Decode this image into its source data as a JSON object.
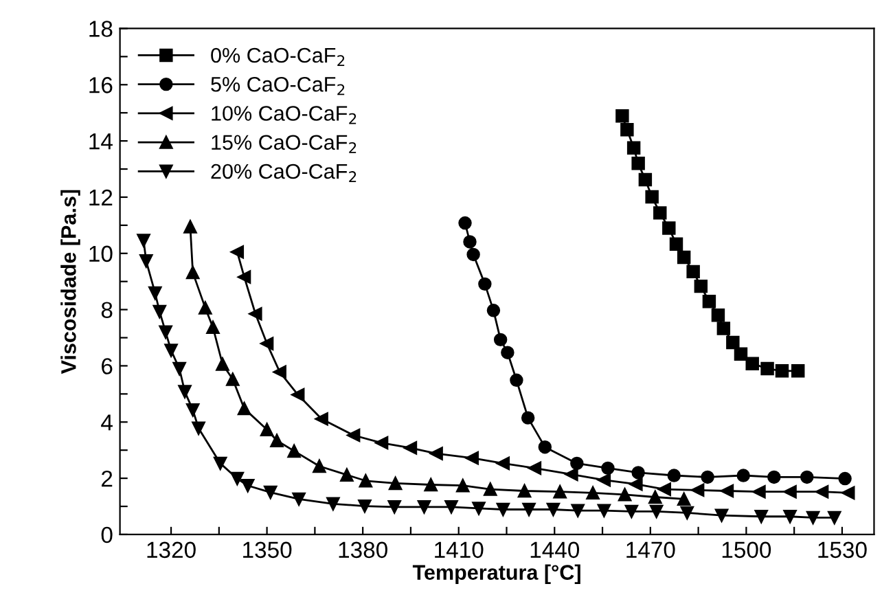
{
  "chart_data": {
    "type": "line",
    "xlabel": "Temperatura [°C]",
    "ylabel": "Viscosidade [Pa.s]",
    "xlim": [
      1304,
      1540
    ],
    "ylim": [
      0,
      18
    ],
    "xticks": [
      1320,
      {
        "value": 1335,
        "label": null
      },
      1350,
      {
        "value": 1365,
        "label": null
      },
      1380,
      {
        "value": 1395,
        "label": null
      },
      1410,
      {
        "value": 1425,
        "label": null
      },
      1440,
      {
        "value": 1455,
        "label": null
      },
      1470,
      {
        "value": 1485,
        "label": null
      },
      1500,
      {
        "value": 1515,
        "label": null
      },
      1530
    ],
    "yticks": [
      0,
      {
        "value": 1,
        "label": null
      },
      2,
      {
        "value": 3,
        "label": null
      },
      4,
      {
        "value": 5,
        "label": null
      },
      6,
      {
        "value": 7,
        "label": null
      },
      8,
      {
        "value": 9,
        "label": null
      },
      10,
      {
        "value": 11,
        "label": null
      },
      12,
      {
        "value": 13,
        "label": null
      },
      14,
      {
        "value": 15,
        "label": null
      },
      16,
      {
        "value": 17,
        "label": null
      },
      18
    ],
    "grid": false,
    "legend": "top left",
    "line_style": "solid",
    "series": [
      {
        "name": "0% CaO-CaF$_{2}$",
        "color": "#000000",
        "marker": "square",
        "x": [
          1461.2,
          1462.7,
          1464.8,
          1466.2,
          1468.4,
          1470.5,
          1473.0,
          1475.8,
          1478.1,
          1480.5,
          1483.4,
          1485.8,
          1488.4,
          1491.2,
          1492.9,
          1495.8,
          1498.3,
          1501.9,
          1506.6,
          1511.2,
          1516.2
        ],
        "values": [
          14.89,
          14.4,
          13.75,
          13.2,
          12.62,
          12.01,
          11.44,
          10.9,
          10.33,
          9.86,
          9.35,
          8.83,
          8.29,
          7.8,
          7.33,
          6.83,
          6.42,
          6.08,
          5.9,
          5.82,
          5.82
        ]
      },
      {
        "name": "5% CaO-CaF$_{2}$",
        "color": "#000000",
        "marker": "circle",
        "x": [
          1412.0,
          1413.5,
          1414.6,
          1418.2,
          1420.9,
          1423.1,
          1425.3,
          1428.1,
          1431.7,
          1437.0,
          1447.0,
          1456.7,
          1466.2,
          1477.4,
          1487.9,
          1499.1,
          1508.7,
          1519.0,
          1530.9
        ],
        "values": [
          11.08,
          10.41,
          9.96,
          8.91,
          7.97,
          6.93,
          6.47,
          5.49,
          4.15,
          3.11,
          2.53,
          2.36,
          2.2,
          2.1,
          2.04,
          2.1,
          2.04,
          2.04,
          1.99
        ]
      },
      {
        "name": "10% CaO-CaF$_{2}$",
        "color": "#000000",
        "marker": "triangle-left",
        "x": [
          1340.7,
          1342.9,
          1346.4,
          1350.0,
          1354.0,
          1359.7,
          1367.1,
          1377.1,
          1385.9,
          1394.9,
          1403.0,
          1414.2,
          1423.9,
          1433.8,
          1445.3,
          1455.5,
          1465.5,
          1474.4,
          1484.8,
          1494.0,
          1504.0,
          1513.7,
          1523.7,
          1531.9
        ],
        "values": [
          10.05,
          9.16,
          7.85,
          6.79,
          5.78,
          4.97,
          4.11,
          3.53,
          3.26,
          3.08,
          2.88,
          2.72,
          2.53,
          2.36,
          2.14,
          1.94,
          1.79,
          1.61,
          1.58,
          1.55,
          1.52,
          1.52,
          1.52,
          1.48
        ]
      },
      {
        "name": "15% CaO-CaF$_{2}$",
        "color": "#000000",
        "marker": "triangle",
        "x": [
          1326.0,
          1326.8,
          1330.7,
          1333.1,
          1336.1,
          1339.3,
          1342.9,
          1350.0,
          1353.1,
          1358.5,
          1366.4,
          1375.0,
          1380.9,
          1390.2,
          1401.3,
          1411.3,
          1419.9,
          1430.6,
          1441.7,
          1452.0,
          1462.0,
          1471.5,
          1480.5
        ],
        "values": [
          10.95,
          9.32,
          8.06,
          7.37,
          6.06,
          5.52,
          4.48,
          3.73,
          3.34,
          2.97,
          2.43,
          2.12,
          1.91,
          1.82,
          1.77,
          1.74,
          1.61,
          1.55,
          1.52,
          1.48,
          1.42,
          1.33,
          1.26
        ]
      },
      {
        "name": "20% CaO-CaF$_{2}$",
        "color": "#000000",
        "marker": "triangle-down",
        "x": [
          1311.4,
          1312.2,
          1315.0,
          1316.4,
          1318.3,
          1320.0,
          1322.6,
          1324.3,
          1326.8,
          1328.6,
          1335.4,
          1340.7,
          1344.0,
          1351.1,
          1360.0,
          1370.7,
          1380.6,
          1389.9,
          1399.2,
          1407.7,
          1416.3,
          1423.9,
          1432.0,
          1439.6,
          1447.3,
          1455.5,
          1464.1,
          1471.9,
          1481.5,
          1492.3,
          1504.7,
          1513.7,
          1520.9,
          1527.6
        ],
        "values": [
          10.46,
          9.73,
          8.59,
          7.93,
          7.2,
          6.55,
          5.9,
          5.08,
          4.43,
          3.78,
          2.53,
          1.99,
          1.74,
          1.5,
          1.26,
          1.09,
          1.01,
          0.98,
          0.98,
          0.98,
          0.93,
          0.89,
          0.89,
          0.89,
          0.85,
          0.85,
          0.82,
          0.82,
          0.77,
          0.68,
          0.64,
          0.64,
          0.6,
          0.6
        ]
      }
    ]
  }
}
